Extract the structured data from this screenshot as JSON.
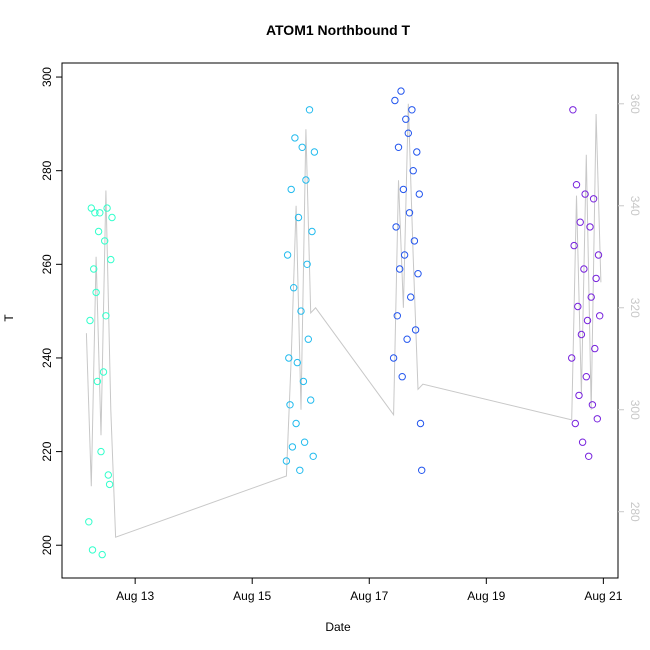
{
  "chart_data": {
    "type": "scatter",
    "title": "ATOM1 Northbound T",
    "xlabel": "Date",
    "ylabel": "T",
    "x_ticks": [
      "Aug 13",
      "Aug 15",
      "Aug 17",
      "Aug 19",
      "Aug 21"
    ],
    "y_ticks": [
      "200",
      "220",
      "240",
      "260",
      "280",
      "300"
    ],
    "y_right_ticks": [
      "280",
      "300",
      "320",
      "340",
      "360"
    ],
    "xlim": [
      "2014-08-11 18:00",
      "2014-08-21 06:00"
    ],
    "ylim": [
      193,
      303
    ],
    "y_right_lim": [
      267,
      368
    ],
    "grid": false,
    "colors": {
      "series_aug12": "#33ffcc",
      "series_aug15": "#22bbee",
      "series_aug17": "#2255ee",
      "series_aug20": "#7722dd",
      "secondary_line": "#c8c8c8",
      "axis": "#000000"
    },
    "series": [
      {
        "x": [
          "2014-08-12 05:00",
          "2014-08-12 05:30",
          "2014-08-12 06:00",
          "2014-08-12 06:30",
          "2014-08-12 07:00",
          "2014-08-12 07:30",
          "2014-08-12 08:00",
          "2014-08-12 08:30",
          "2014-08-12 09:00",
          "2014-08-12 09:30",
          "2014-08-12 10:00",
          "2014-08-12 10:30",
          "2014-08-12 11:00",
          "2014-08-12 11:30",
          "2014-08-12 12:00",
          "2014-08-12 12:30",
          "2014-08-12 13:00",
          "2014-08-12 13:30",
          "2014-08-12 14:00",
          "2014-08-12 14:30"
        ],
        "values": [
          205,
          248,
          272,
          199,
          259,
          271,
          254,
          235,
          267,
          271,
          220,
          198,
          237,
          265,
          249,
          272,
          215,
          213,
          261,
          270
        ]
      },
      {
        "x": [
          "2014-08-15 14:00",
          "2014-08-15 14:30",
          "2014-08-15 15:00",
          "2014-08-15 15:30",
          "2014-08-15 16:00",
          "2014-08-15 16:30",
          "2014-08-15 17:00",
          "2014-08-15 17:30",
          "2014-08-15 18:00",
          "2014-08-15 18:30",
          "2014-08-15 19:00",
          "2014-08-15 19:30",
          "2014-08-15 20:00",
          "2014-08-15 20:30",
          "2014-08-15 21:00",
          "2014-08-15 21:30",
          "2014-08-15 22:00",
          "2014-08-15 22:30",
          "2014-08-15 23:00",
          "2014-08-15 23:30",
          "2014-08-16 00:00",
          "2014-08-16 00:30",
          "2014-08-16 01:00",
          "2014-08-16 01:30"
        ],
        "values": [
          218,
          262,
          240,
          230,
          276,
          221,
          255,
          287,
          226,
          239,
          270,
          216,
          250,
          285,
          235,
          222,
          278,
          260,
          244,
          293,
          231,
          267,
          219,
          284
        ]
      },
      {
        "x": [
          "2014-08-17 10:00",
          "2014-08-17 10:30",
          "2014-08-17 11:00",
          "2014-08-17 11:30",
          "2014-08-17 12:00",
          "2014-08-17 12:30",
          "2014-08-17 13:00",
          "2014-08-17 13:30",
          "2014-08-17 14:00",
          "2014-08-17 14:30",
          "2014-08-17 15:00",
          "2014-08-17 15:30",
          "2014-08-17 16:00",
          "2014-08-17 16:30",
          "2014-08-17 17:00",
          "2014-08-17 17:30",
          "2014-08-17 18:00",
          "2014-08-17 18:30",
          "2014-08-17 19:00",
          "2014-08-17 19:30",
          "2014-08-17 20:00",
          "2014-08-17 20:30",
          "2014-08-17 21:00",
          "2014-08-17 21:30"
        ],
        "values": [
          240,
          295,
          268,
          249,
          285,
          259,
          297,
          236,
          276,
          262,
          291,
          244,
          288,
          271,
          253,
          293,
          280,
          265,
          246,
          284,
          258,
          275,
          226,
          216
        ]
      },
      {
        "x": [
          "2014-08-20 11:00",
          "2014-08-20 11:30",
          "2014-08-20 12:00",
          "2014-08-20 12:30",
          "2014-08-20 13:00",
          "2014-08-20 13:30",
          "2014-08-20 14:00",
          "2014-08-20 14:30",
          "2014-08-20 15:00",
          "2014-08-20 15:30",
          "2014-08-20 16:00",
          "2014-08-20 16:30",
          "2014-08-20 17:00",
          "2014-08-20 17:30",
          "2014-08-20 18:00",
          "2014-08-20 18:30",
          "2014-08-20 19:00",
          "2014-08-20 19:30",
          "2014-08-20 20:00",
          "2014-08-20 20:30",
          "2014-08-20 21:00",
          "2014-08-20 21:30",
          "2014-08-20 22:00",
          "2014-08-20 22:30"
        ],
        "values": [
          240,
          293,
          264,
          226,
          277,
          251,
          232,
          269,
          245,
          222,
          259,
          275,
          236,
          248,
          219,
          268,
          253,
          230,
          274,
          242,
          257,
          227,
          262,
          249
        ]
      }
    ],
    "secondary_line": {
      "x": [
        "2014-08-12 04:00",
        "2014-08-12 06:00",
        "2014-08-12 08:00",
        "2014-08-12 10:00",
        "2014-08-12 12:00",
        "2014-08-12 14:00",
        "2014-08-12 16:00",
        "2014-08-15 14:00",
        "2014-08-15 16:00",
        "2014-08-15 18:00",
        "2014-08-15 20:00",
        "2014-08-15 22:00",
        "2014-08-16 00:00",
        "2014-08-16 02:00",
        "2014-08-17 10:00",
        "2014-08-17 12:00",
        "2014-08-17 14:00",
        "2014-08-17 16:00",
        "2014-08-17 18:00",
        "2014-08-17 20:00",
        "2014-08-17 22:00",
        "2014-08-20 11:00",
        "2014-08-20 13:00",
        "2014-08-20 15:00",
        "2014-08-20 17:00",
        "2014-08-20 19:00",
        "2014-08-20 21:00",
        "2014-08-20 23:00"
      ],
      "values": [
        315,
        285,
        330,
        295,
        343,
        300,
        275,
        287,
        310,
        340,
        300,
        355,
        319,
        320,
        299,
        345,
        320,
        360,
        330,
        304,
        305,
        298,
        342,
        303,
        350,
        300,
        358,
        325
      ]
    }
  }
}
